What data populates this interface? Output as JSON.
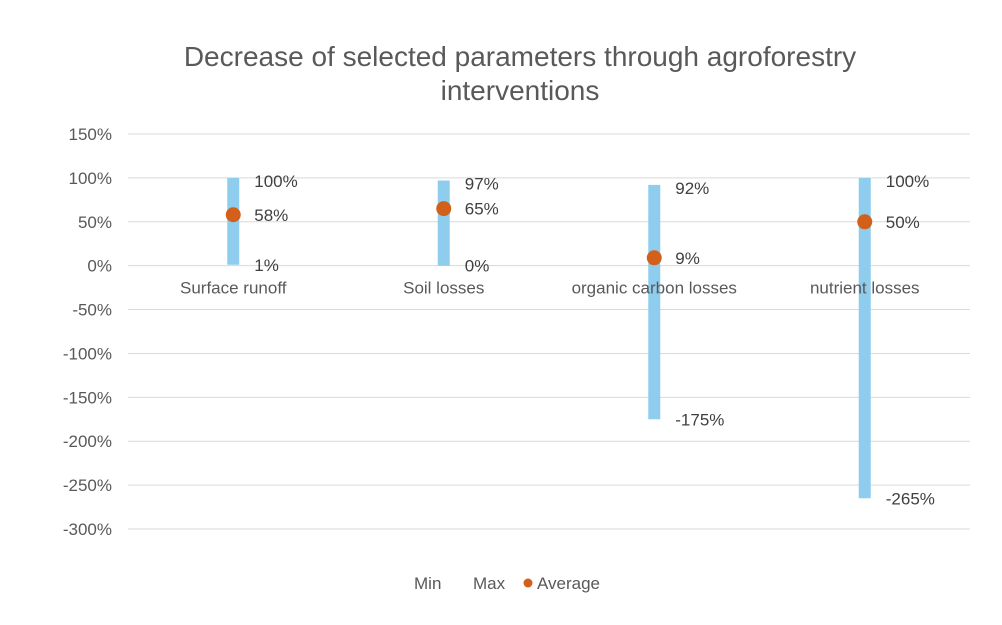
{
  "chart_data": {
    "type": "range_dot",
    "title_lines": [
      "Decrease of selected parameters through agroforestry",
      "interventions"
    ],
    "categories": [
      "Surface runoff",
      "Soil losses",
      "organic carbon losses",
      "nutrient losses"
    ],
    "series": [
      {
        "name": "Min",
        "values": [
          1,
          0,
          -175,
          -265
        ]
      },
      {
        "name": "Max",
        "values": [
          100,
          97,
          92,
          100
        ]
      },
      {
        "name": "Average",
        "values": [
          58,
          65,
          9,
          50
        ]
      }
    ],
    "min_labels": [
      "1%",
      "0%",
      "-175%",
      "-265%"
    ],
    "max_labels": [
      "100%",
      "97%",
      "92%",
      "100%"
    ],
    "avg_labels": [
      "58%",
      "65%",
      "9%",
      "50%"
    ],
    "ylim": [
      -300,
      150
    ],
    "yticks": [
      150,
      100,
      50,
      0,
      -50,
      -100,
      -150,
      -200,
      -250,
      -300
    ],
    "ytick_labels": [
      "150%",
      "100%",
      "50%",
      "0%",
      "-50%",
      "-100%",
      "-150%",
      "-200%",
      "-250%",
      "-300%"
    ],
    "grid": true,
    "legend_position": "bottom",
    "colors": {
      "range_bar": "#8fcdee",
      "average_dot": "#d2601a",
      "grid": "#d9d9d9",
      "text": "#595959",
      "label_text": "#404040"
    }
  }
}
